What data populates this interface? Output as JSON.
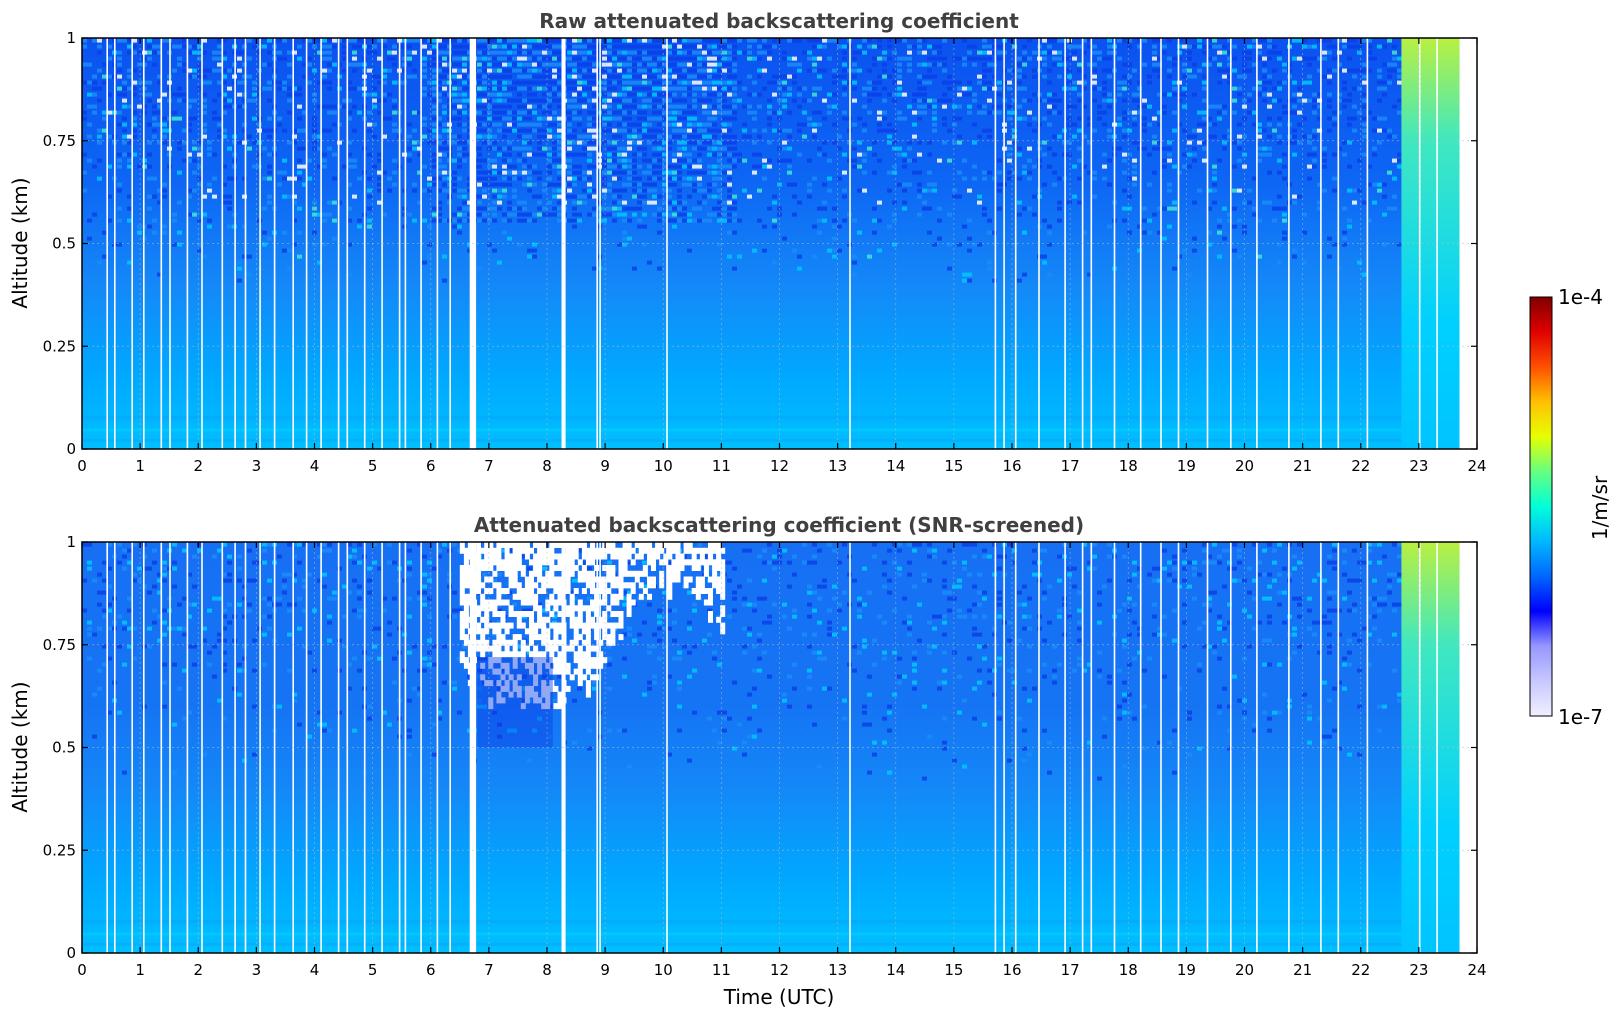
{
  "chart_data": [
    {
      "type": "heatmap",
      "title": "Raw attenuated backscattering coefficient",
      "xlabel": "",
      "ylabel": "Altitude (km)",
      "xlim": [
        0,
        24
      ],
      "ylim": [
        0,
        1
      ],
      "x_ticks": [
        "0",
        "1",
        "2",
        "3",
        "4",
        "5",
        "6",
        "7",
        "8",
        "9",
        "10",
        "11",
        "12",
        "13",
        "14",
        "15",
        "16",
        "17",
        "18",
        "19",
        "20",
        "21",
        "22",
        "23",
        "24"
      ],
      "y_ticks": [
        "0",
        "0.25",
        "0.5",
        "0.75",
        "1"
      ],
      "grid": true,
      "data_end_hour": 23.7,
      "noise_region": {
        "from_hour": 6.0,
        "to_hour": 11.2,
        "min_altitude_km": 0.55
      },
      "bright_region": {
        "from_hour": 22.7,
        "to_hour": 23.7
      }
    },
    {
      "type": "heatmap",
      "title": "Attenuated backscattering coefficient (SNR-screened)",
      "xlabel": "Time (UTC)",
      "ylabel": "Altitude (km)",
      "xlim": [
        0,
        24
      ],
      "ylim": [
        0,
        1
      ],
      "x_ticks": [
        "0",
        "1",
        "2",
        "3",
        "4",
        "5",
        "6",
        "7",
        "8",
        "9",
        "10",
        "11",
        "12",
        "13",
        "14",
        "15",
        "16",
        "17",
        "18",
        "19",
        "20",
        "21",
        "22",
        "23",
        "24"
      ],
      "y_ticks": [
        "0",
        "0.25",
        "0.5",
        "0.75",
        "1"
      ],
      "grid": true,
      "data_end_hour": 23.7,
      "screened_region": {
        "from_hour": 6.5,
        "to_hour": 11.0,
        "min_altitude_km": 0.6
      },
      "bright_region": {
        "from_hour": 22.7,
        "to_hour": 23.7
      }
    }
  ],
  "gap_hours": [
    0.42,
    0.55,
    0.85,
    1.05,
    1.35,
    1.5,
    1.8,
    2.05,
    2.4,
    2.62,
    2.8,
    3.05,
    3.3,
    3.62,
    3.85,
    4.1,
    4.4,
    4.55,
    4.85,
    5.15,
    5.45,
    5.55,
    5.82,
    6.1,
    6.32,
    8.28,
    8.85,
    8.9,
    10.05,
    13.2,
    15.7,
    15.85,
    16.05,
    16.45,
    16.9,
    17.2,
    17.35,
    17.75,
    18.2,
    18.55,
    18.85,
    19.35,
    19.75,
    20.2,
    20.75,
    21.3,
    21.6,
    22.1,
    23.0,
    23.3
  ],
  "wide_gaps": [
    [
      6.67,
      6.78
    ],
    [
      8.25,
      8.32
    ]
  ],
  "colorbar": {
    "label": "1/m/sr",
    "max_label": "1e-4",
    "min_label": "1e-7",
    "colors": [
      "#f0f0ff",
      "#c8c8ff",
      "#9696ff",
      "#0000ff",
      "#0066ff",
      "#00b8ff",
      "#00ffd8",
      "#66ff80",
      "#e6ff00",
      "#ffc000",
      "#ff5000",
      "#e00000",
      "#800000"
    ]
  }
}
